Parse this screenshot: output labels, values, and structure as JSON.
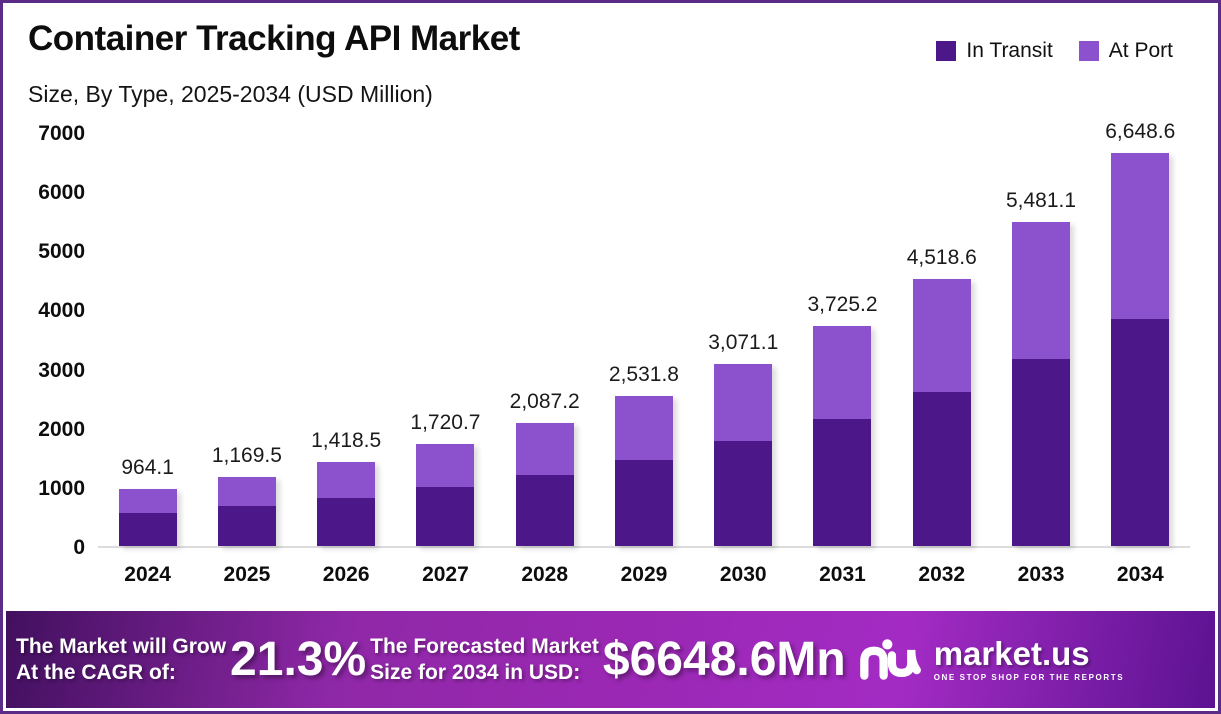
{
  "frame": {
    "border_color": "#5b2b87"
  },
  "header": {
    "title": "Container Tracking API Market",
    "subtitle": "Size, By Type, 2025-2034 (USD Million)"
  },
  "legend": [
    {
      "label": "In Transit",
      "color": "#4b1789"
    },
    {
      "label": "At Port",
      "color": "#8c52ce"
    }
  ],
  "chart_data": {
    "type": "bar",
    "stacked": true,
    "title": "Container Tracking API Market",
    "subtitle": "Size, By Type, 2025-2034 (USD Million)",
    "xlabel": "",
    "ylabel": "",
    "unit": "USD Million",
    "categories": [
      "2024",
      "2025",
      "2026",
      "2027",
      "2028",
      "2029",
      "2030",
      "2031",
      "2032",
      "2033",
      "2034"
    ],
    "series": [
      {
        "name": "In Transit",
        "color": "#4b1789",
        "values": [
          556.3,
          674.8,
          818.5,
          992.8,
          1204.3,
          1460.8,
          1772.0,
          2149.4,
          2607.2,
          3162.6,
          3836.2
        ]
      },
      {
        "name": "At Port",
        "color": "#8c52ce",
        "values": [
          407.8,
          494.7,
          600.0,
          727.9,
          882.9,
          1071.0,
          1299.1,
          1575.8,
          1911.4,
          2318.5,
          2812.4
        ]
      }
    ],
    "totals": [
      964.1,
      1169.5,
      1418.5,
      1720.7,
      2087.2,
      2531.8,
      3071.1,
      3725.2,
      4518.6,
      5481.1,
      6648.6
    ],
    "total_labels": [
      "964.1",
      "1,169.5",
      "1,418.5",
      "1,720.7",
      "2,087.2",
      "2,531.8",
      "3,071.1",
      "3,725.2",
      "4,518.6",
      "5,481.1",
      "6,648.6"
    ],
    "ylim": [
      0,
      7000
    ],
    "yticks": [
      0,
      1000,
      2000,
      3000,
      4000,
      5000,
      6000,
      7000
    ],
    "grid": false,
    "legend_position": "top-right"
  },
  "banner": {
    "cagr_label_line1": "The Market will Grow",
    "cagr_label_line2": "At the CAGR of:",
    "cagr_value": "21.3%",
    "forecast_label_line1": "The Forecasted Market",
    "forecast_label_line2": "Size for 2034 in USD:",
    "forecast_value": "$6648.6Mn",
    "brand": "market.us",
    "brand_tagline": "ONE STOP SHOP FOR THE REPORTS",
    "gradient": [
      "#42105f",
      "#9b28b4",
      "#a32bc4",
      "#5c1391"
    ]
  }
}
